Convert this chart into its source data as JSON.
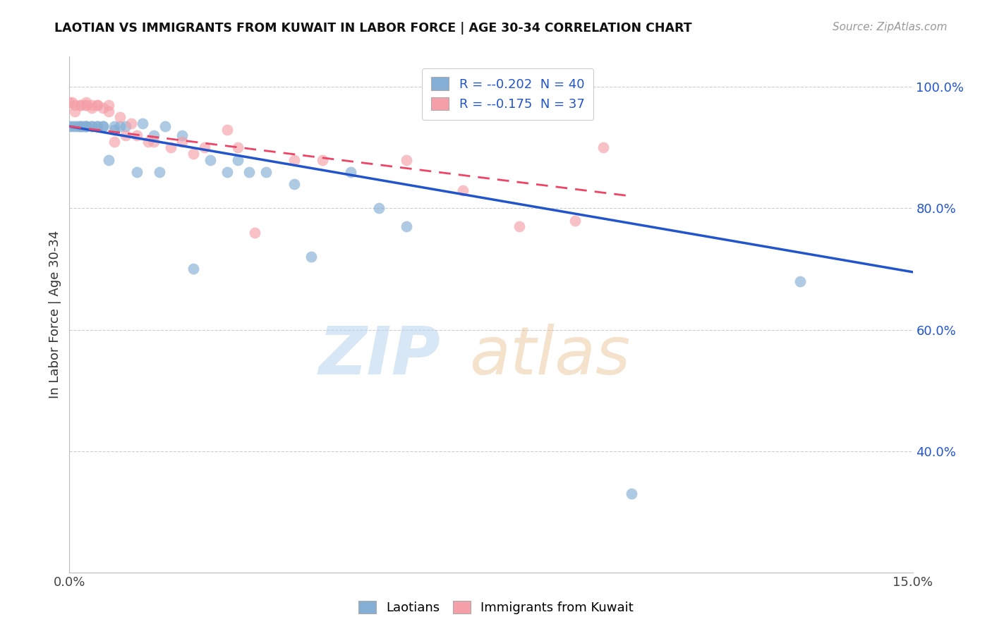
{
  "title": "LAOTIAN VS IMMIGRANTS FROM KUWAIT IN LABOR FORCE | AGE 30-34 CORRELATION CHART",
  "source": "Source: ZipAtlas.com",
  "ylabel": "In Labor Force | Age 30-34",
  "x_min": 0.0,
  "x_max": 0.15,
  "y_min": 0.2,
  "y_max": 1.05,
  "y_ticks_right": [
    0.4,
    0.6,
    0.8,
    1.0
  ],
  "y_tick_labels_right": [
    "40.0%",
    "60.0%",
    "80.0%",
    "100.0%"
  ],
  "blue_color": "#85aed4",
  "pink_color": "#f5a0a8",
  "blue_line_color": "#2255cc",
  "pink_line_color": "#ee4466",
  "legend_r_blue": "-0.202",
  "legend_n_blue": "40",
  "legend_r_pink": "-0.175",
  "legend_n_pink": "37",
  "blue_scatter_x": [
    0.0,
    0.0005,
    0.001,
    0.0015,
    0.002,
    0.002,
    0.0025,
    0.003,
    0.003,
    0.003,
    0.004,
    0.004,
    0.005,
    0.005,
    0.006,
    0.006,
    0.007,
    0.008,
    0.008,
    0.009,
    0.01,
    0.012,
    0.013,
    0.015,
    0.016,
    0.017,
    0.02,
    0.022,
    0.025,
    0.028,
    0.03,
    0.032,
    0.035,
    0.04,
    0.043,
    0.05,
    0.055,
    0.06,
    0.1,
    0.13
  ],
  "blue_scatter_y": [
    0.935,
    0.935,
    0.935,
    0.935,
    0.935,
    0.935,
    0.935,
    0.935,
    0.935,
    0.935,
    0.935,
    0.935,
    0.935,
    0.935,
    0.935,
    0.935,
    0.88,
    0.93,
    0.935,
    0.935,
    0.935,
    0.86,
    0.94,
    0.92,
    0.86,
    0.935,
    0.92,
    0.7,
    0.88,
    0.86,
    0.88,
    0.86,
    0.86,
    0.84,
    0.72,
    0.86,
    0.8,
    0.77,
    0.33,
    0.68
  ],
  "pink_scatter_x": [
    0.0,
    0.0005,
    0.001,
    0.001,
    0.002,
    0.002,
    0.003,
    0.003,
    0.003,
    0.004,
    0.004,
    0.005,
    0.005,
    0.006,
    0.007,
    0.007,
    0.008,
    0.009,
    0.01,
    0.011,
    0.012,
    0.014,
    0.015,
    0.018,
    0.02,
    0.022,
    0.024,
    0.028,
    0.03,
    0.033,
    0.04,
    0.045,
    0.06,
    0.07,
    0.08,
    0.09,
    0.095
  ],
  "pink_scatter_y": [
    0.975,
    0.975,
    0.97,
    0.96,
    0.97,
    0.97,
    0.97,
    0.975,
    0.97,
    0.97,
    0.965,
    0.97,
    0.97,
    0.965,
    0.96,
    0.97,
    0.91,
    0.95,
    0.92,
    0.94,
    0.92,
    0.91,
    0.91,
    0.9,
    0.91,
    0.89,
    0.9,
    0.93,
    0.9,
    0.76,
    0.88,
    0.88,
    0.88,
    0.83,
    0.77,
    0.78,
    0.9
  ],
  "blue_line_x": [
    0.0,
    0.15
  ],
  "blue_line_y": [
    0.935,
    0.695
  ],
  "pink_line_x": [
    0.0,
    0.1
  ],
  "pink_line_y": [
    0.935,
    0.82
  ]
}
